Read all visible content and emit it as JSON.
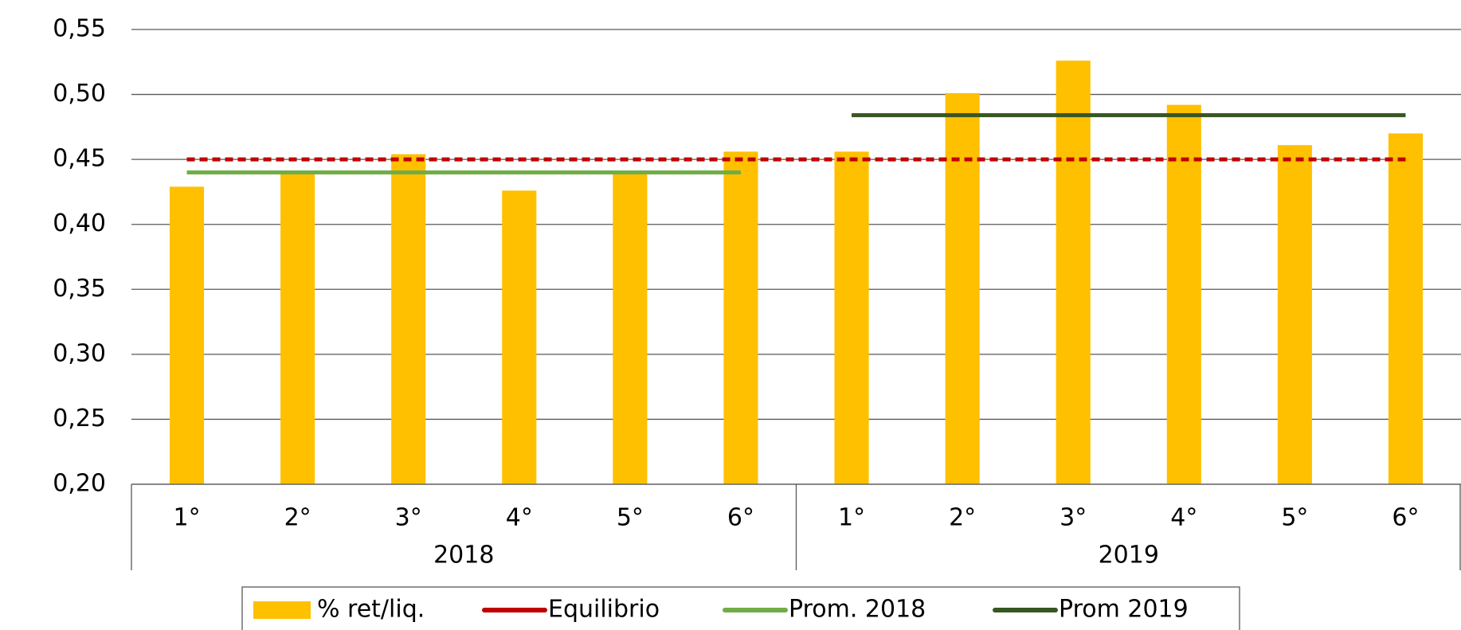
{
  "chart_data": {
    "type": "bar",
    "categories": [
      "1°",
      "2°",
      "3°",
      "4°",
      "5°",
      "6°",
      "1°",
      "2°",
      "3°",
      "4°",
      "5°",
      "6°"
    ],
    "groups": [
      "2018",
      "2019"
    ],
    "series": [
      {
        "name": "% ret/liq.",
        "type": "bar",
        "color": "#FFC000",
        "values": [
          0.429,
          0.44,
          0.454,
          0.426,
          0.44,
          0.456,
          0.456,
          0.501,
          0.526,
          0.492,
          0.461,
          0.47
        ]
      },
      {
        "name": "Equilibrio",
        "type": "line",
        "dashed": true,
        "color": "#C00000",
        "values": [
          0.45,
          0.45,
          0.45,
          0.45,
          0.45,
          0.45,
          0.45,
          0.45,
          0.45,
          0.45,
          0.45,
          0.45
        ]
      },
      {
        "name": "Prom. 2018",
        "type": "line",
        "color": "#70AD47",
        "values": [
          0.44,
          0.44,
          0.44,
          0.44,
          0.44,
          0.44,
          null,
          null,
          null,
          null,
          null,
          null
        ]
      },
      {
        "name": "Prom 2019",
        "type": "line",
        "color": "#375623",
        "values": [
          null,
          null,
          null,
          null,
          null,
          null,
          0.484,
          0.484,
          0.484,
          0.484,
          0.484,
          0.484
        ]
      }
    ],
    "ylim": [
      0.2,
      0.55
    ],
    "yticks": [
      {
        "value": 0.2,
        "label": "0,20"
      },
      {
        "value": 0.25,
        "label": "0,25"
      },
      {
        "value": 0.3,
        "label": "0,30"
      },
      {
        "value": 0.35,
        "label": "0,35"
      },
      {
        "value": 0.4,
        "label": "0,40"
      },
      {
        "value": 0.45,
        "label": "0,45"
      },
      {
        "value": 0.5,
        "label": "0,50"
      },
      {
        "value": 0.55,
        "label": "0,55"
      }
    ],
    "grid": true,
    "legend": "bottom"
  }
}
